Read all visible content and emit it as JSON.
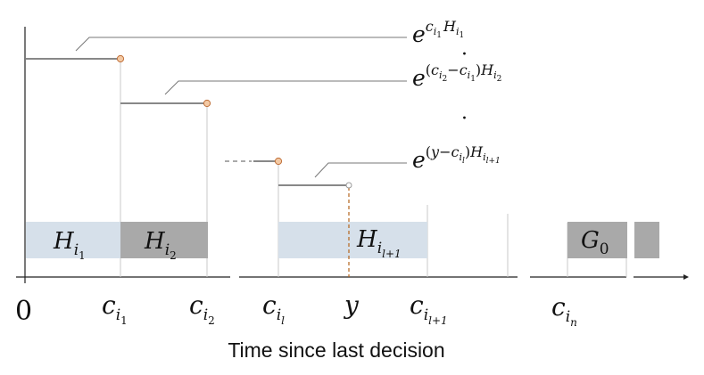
{
  "colors": {
    "band_light": "#d6e0ea",
    "band_dark": "#a9a9a9",
    "marker_fill": "#f3c9a4",
    "marker_stroke": "#c0703a",
    "y_line": "#b5651d"
  },
  "ticks": {
    "origin": "0",
    "c_i1": {
      "base": "c",
      "sub": "i",
      "subsub": "1"
    },
    "c_i2": {
      "base": "c",
      "sub": "i",
      "subsub": "2"
    },
    "c_il": {
      "base": "c",
      "sub": "i",
      "subsub": "l"
    },
    "y": "y",
    "c_il1": {
      "base": "c",
      "sub": "i",
      "subsub": "l+1"
    },
    "c_in": {
      "base": "c",
      "sub": "i",
      "subsub": "n"
    }
  },
  "bands": {
    "H_i1": {
      "base": "H",
      "sub": "i",
      "subsub": "1"
    },
    "H_i2": {
      "base": "H",
      "sub": "i",
      "subsub": "2"
    },
    "H_il1": {
      "base": "H",
      "sub": "i",
      "subsub": "l+1"
    },
    "G0": {
      "base": "G",
      "sub": "0"
    }
  },
  "formulas": {
    "f1": {
      "e": "e",
      "exp": "c",
      "s1": "i",
      "ss1": "1",
      "H": "H",
      "s2": "i",
      "ss2": "1"
    },
    "f2": {
      "e": "e",
      "open": "(",
      "c1": "c",
      "s1": "i",
      "ss1": "2",
      "minus": "−",
      "c2": "c",
      "s2": "i",
      "ss2": "1",
      "close": ")",
      "H": "H",
      "s3": "i",
      "ss3": "2"
    },
    "f3": {
      "e": "e",
      "open": "(",
      "y": "y",
      "minus": "−",
      "c": "c",
      "s1": "i",
      "ss1": "l",
      "close": ")",
      "H": "H",
      "s2": "i",
      "ss2": "l+1"
    }
  },
  "ellipsis_dot": "·",
  "caption": "Time since last decision"
}
